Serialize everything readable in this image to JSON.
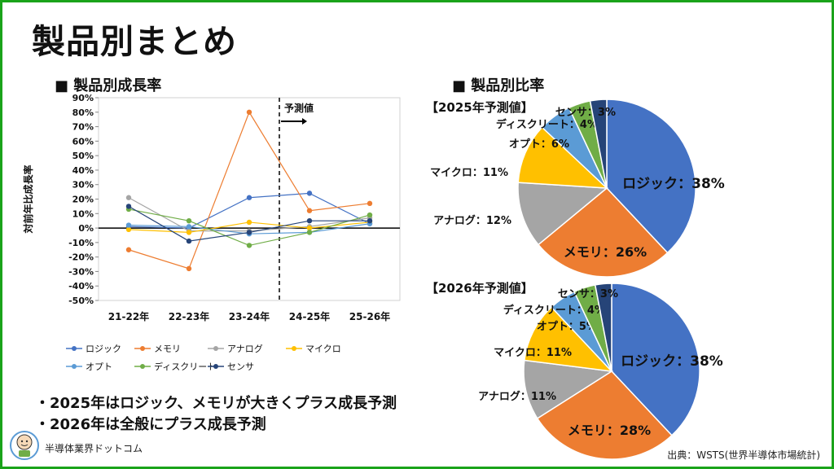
{
  "slide": {
    "title": "製品別まとめ",
    "growth_heading": "■ 製品別成長率",
    "share_heading": "■ 製品別比率",
    "pie2025_label": "【2025年予測値】",
    "pie2026_label": "【2026年予測値】",
    "forecast_label": "予測値",
    "bullets": [
      "・2025年はロジック、メモリが大きくプラス成長予測",
      "・2026年は全般にプラス成長予測"
    ],
    "brand": "半導体業界ドットコム",
    "source": "出典：WSTS(世界半導体市場統計)"
  },
  "chart_data": [
    {
      "type": "line",
      "ylabel": "対前年比成長率",
      "categories": [
        "21-22年",
        "22-23年",
        "23-24年",
        "24-25年",
        "25-26年"
      ],
      "ylim": [
        -50,
        90
      ],
      "ytick_step": 10,
      "ytick_suffix": "%",
      "forecast_start_between": [
        "23-24年",
        "24-25年"
      ],
      "series": [
        {
          "name": "ロジック",
          "color": "#4472c4",
          "values": [
            1,
            0,
            21,
            24,
            3
          ]
        },
        {
          "name": "メモリ",
          "color": "#ed7d31",
          "values": [
            -15,
            -28,
            80,
            12,
            17
          ]
        },
        {
          "name": "アナログ",
          "color": "#a5a5a5",
          "values": [
            21,
            -2,
            -2,
            1,
            7
          ]
        },
        {
          "name": "マイクロ",
          "color": "#ffc000",
          "values": [
            -1,
            -3,
            4,
            0,
            4
          ]
        },
        {
          "name": "オプト",
          "color": "#5b9bd5",
          "values": [
            2,
            1,
            -4,
            -3,
            3
          ]
        },
        {
          "name": "ディスクリート",
          "color": "#70ad47",
          "values": [
            13,
            5,
            -12,
            -3,
            9
          ]
        },
        {
          "name": "センサ",
          "color": "#264478",
          "values": [
            15,
            -9,
            -3,
            5,
            5
          ]
        }
      ],
      "legend_order": [
        "ロジック",
        "メモリ",
        "アナログ",
        "マイクロ",
        "オプト",
        "ディスクリート",
        "センサ"
      ],
      "legend_position": "bottom"
    },
    {
      "type": "pie",
      "title": "【2025年予測値】",
      "slices": [
        {
          "name": "ロジック",
          "value": 38,
          "label": "ロジック：38%",
          "color": "#4472c4"
        },
        {
          "name": "メモリ",
          "value": 26,
          "label": "メモリ：26%",
          "color": "#ed7d31"
        },
        {
          "name": "アナログ",
          "value": 12,
          "label": "アナログ：12%",
          "color": "#a5a5a5"
        },
        {
          "name": "マイクロ",
          "value": 11,
          "label": "マイクロ：11%",
          "color": "#ffc000"
        },
        {
          "name": "オプト",
          "value": 6,
          "label": "オプト：6%",
          "color": "#5b9bd5"
        },
        {
          "name": "ディスクリート",
          "value": 4,
          "label": "ディスクリート：4%",
          "color": "#70ad47"
        },
        {
          "name": "センサ",
          "value": 3,
          "label": "センサ：3%",
          "color": "#264478"
        }
      ]
    },
    {
      "type": "pie",
      "title": "【2026年予測値】",
      "slices": [
        {
          "name": "ロジック",
          "value": 38,
          "label": "ロジック：38%",
          "color": "#4472c4"
        },
        {
          "name": "メモリ",
          "value": 28,
          "label": "メモリ：28%",
          "color": "#ed7d31"
        },
        {
          "name": "アナログ",
          "value": 11,
          "label": "アナログ：11%",
          "color": "#a5a5a5"
        },
        {
          "name": "マイクロ",
          "value": 11,
          "label": "マイクロ：11%",
          "color": "#ffc000"
        },
        {
          "name": "オプト",
          "value": 5,
          "label": "オプト：5%",
          "color": "#5b9bd5"
        },
        {
          "name": "ディスクリート",
          "value": 4,
          "label": "ディスクリート：4%",
          "color": "#70ad47"
        },
        {
          "name": "センサ",
          "value": 3,
          "label": "センサ：3%",
          "color": "#264478"
        }
      ]
    }
  ]
}
